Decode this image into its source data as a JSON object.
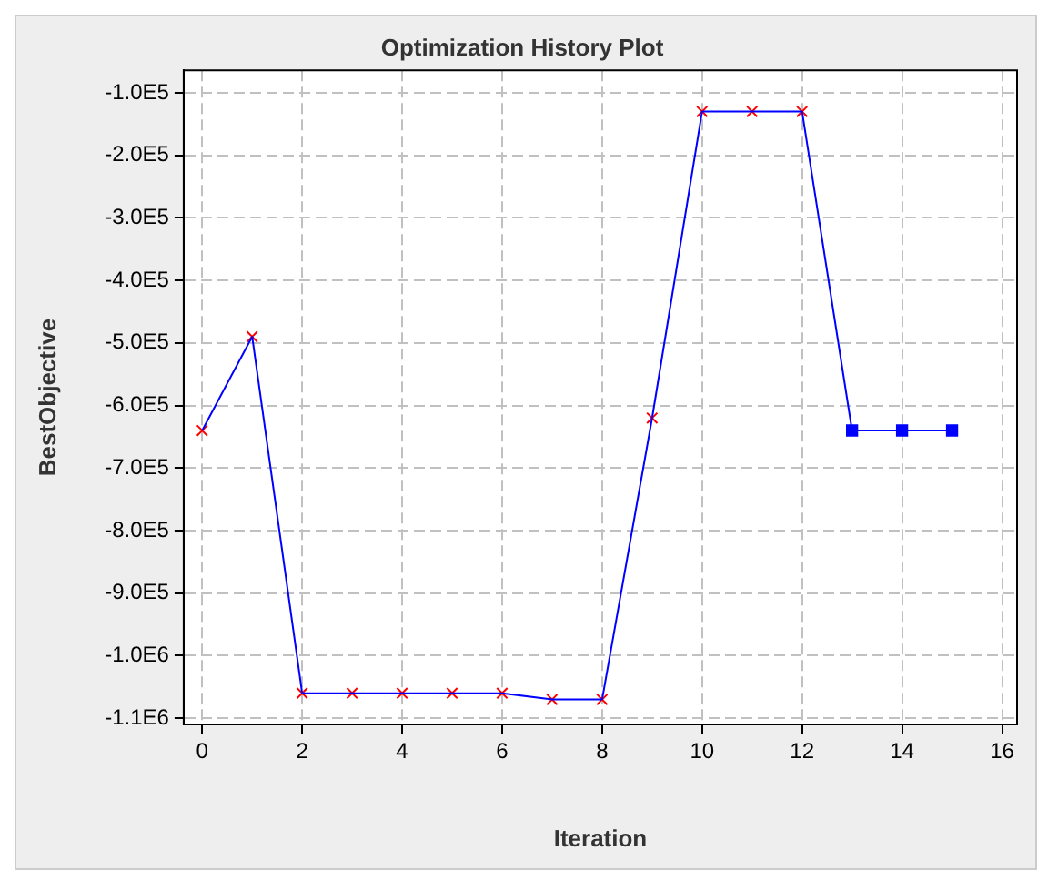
{
  "chart_data": {
    "type": "line",
    "title": "Optimization History Plot",
    "xlabel": "Iteration",
    "ylabel": "BestObjective",
    "xlim": [
      -0.37,
      16.3
    ],
    "xticks": [
      0,
      2,
      4,
      6,
      8,
      10,
      12,
      14,
      16
    ],
    "ylim": [
      -1110000,
      -64000
    ],
    "yticks": [
      {
        "value": -100000,
        "label": "-1.0E5"
      },
      {
        "value": -200000,
        "label": "-2.0E5"
      },
      {
        "value": -300000,
        "label": "-3.0E5"
      },
      {
        "value": -400000,
        "label": "-4.0E5"
      },
      {
        "value": -500000,
        "label": "-5.0E5"
      },
      {
        "value": -600000,
        "label": "-6.0E5"
      },
      {
        "value": -700000,
        "label": "-7.0E5"
      },
      {
        "value": -800000,
        "label": "-8.0E5"
      },
      {
        "value": -900000,
        "label": "-9.0E5"
      },
      {
        "value": -1000000,
        "label": "-1.0E6"
      },
      {
        "value": -1100000,
        "label": "-1.1E6"
      }
    ],
    "grid": true,
    "line_style": "solid",
    "series": [
      {
        "type": "line",
        "color": "#0000ff",
        "marker": "none",
        "x": [
          0,
          1,
          2,
          3,
          4,
          5,
          6,
          7,
          8,
          9,
          10,
          11,
          12,
          13,
          14,
          15
        ],
        "values": [
          -640000,
          -490000,
          -1060000,
          -1060000,
          -1060000,
          -1060000,
          -1060000,
          -1070000,
          -1070000,
          -620000,
          -130000,
          -130000,
          -130000,
          -640000,
          -640000,
          -640000
        ]
      },
      {
        "type": "scatter",
        "color": "#ff0000",
        "marker": "cross",
        "x": [
          0,
          1,
          2,
          3,
          4,
          5,
          6,
          7,
          8,
          9,
          10,
          11,
          12
        ],
        "values": [
          -640000,
          -490000,
          -1060000,
          -1060000,
          -1060000,
          -1060000,
          -1060000,
          -1070000,
          -1070000,
          -620000,
          -130000,
          -130000,
          -130000
        ]
      },
      {
        "type": "scatter",
        "color": "#0000ff",
        "marker": "square",
        "x": [
          13,
          14,
          15
        ],
        "values": [
          -640000,
          -640000,
          -640000
        ]
      }
    ]
  }
}
